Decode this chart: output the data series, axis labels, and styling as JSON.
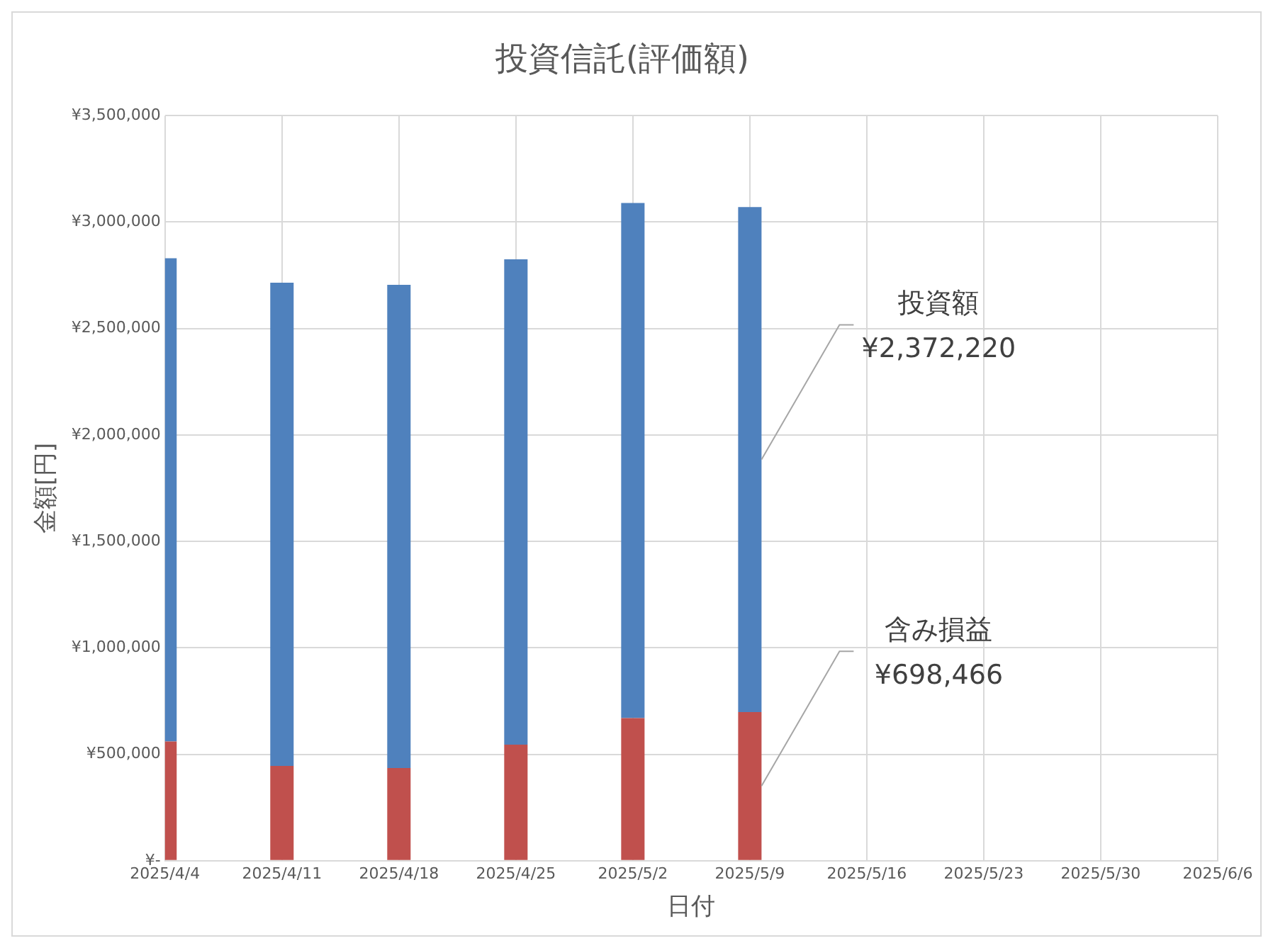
{
  "chart_data": {
    "type": "bar",
    "title": "投資信託(評価額)",
    "xlabel": "日付",
    "ylabel": "金額[円]",
    "categories": [
      "2025/4/4",
      "2025/4/11",
      "2025/4/18",
      "2025/4/25",
      "2025/5/2",
      "2025/5/9",
      "2025/5/16",
      "2025/5/23",
      "2025/5/30",
      "2025/6/6"
    ],
    "stacked": true,
    "series": [
      {
        "name": "含み損益",
        "color": "#c0504d",
        "values": [
          560000,
          445000,
          435000,
          545000,
          670000,
          698466,
          null,
          null,
          null,
          null
        ],
        "value_labels": [
          null,
          null,
          null,
          null,
          null,
          "¥698,466",
          null,
          null,
          null,
          null
        ]
      },
      {
        "name": "投資額",
        "color": "#4f81bd",
        "values": [
          2270000,
          2270000,
          2270000,
          2280000,
          2420000,
          2372220,
          null,
          null,
          null,
          null
        ],
        "value_labels": [
          null,
          null,
          null,
          null,
          null,
          "¥2,372,220",
          null,
          null,
          null,
          null
        ]
      }
    ],
    "ylim": [
      0,
      3500000
    ],
    "yticks": [
      {
        "value": 0,
        "label": "¥-"
      },
      {
        "value": 500000,
        "label": "¥500,000"
      },
      {
        "value": 1000000,
        "label": "¥1,000,000"
      },
      {
        "value": 1500000,
        "label": "¥1,500,000"
      },
      {
        "value": 2000000,
        "label": "¥2,000,000"
      },
      {
        "value": 2500000,
        "label": "¥2,500,000"
      },
      {
        "value": 3000000,
        "label": "¥3,000,000"
      },
      {
        "value": 3500000,
        "label": "¥3,500,000"
      }
    ],
    "grid": true,
    "legend": false
  }
}
